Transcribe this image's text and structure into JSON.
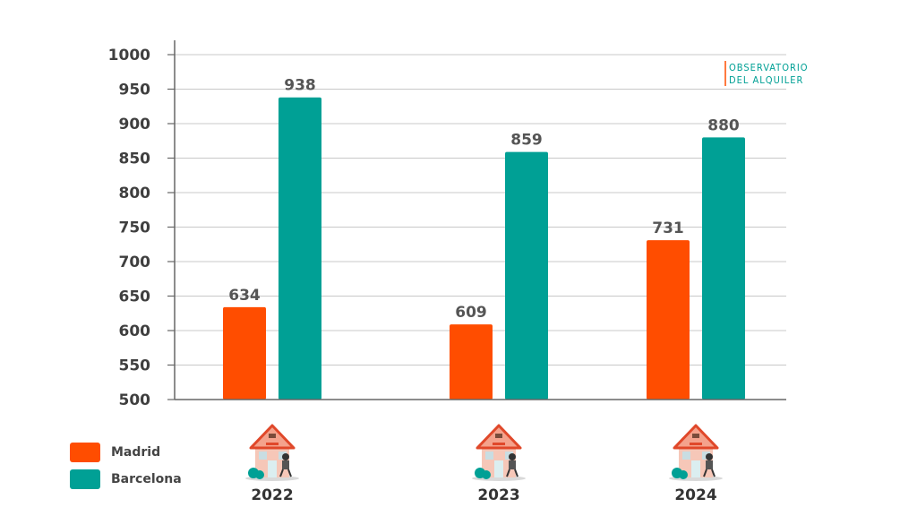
{
  "chart_data": {
    "type": "bar",
    "categories": [
      "2022",
      "2023",
      "2024"
    ],
    "series": [
      {
        "name": "Madrid",
        "values": [
          634,
          609,
          731
        ]
      },
      {
        "name": "Barcelona",
        "values": [
          938,
          859,
          880
        ]
      }
    ],
    "title": "",
    "xlabel": "",
    "ylabel": "",
    "ylim": [
      500,
      1000
    ],
    "yticks": [
      500,
      550,
      600,
      650,
      700,
      750,
      800,
      850,
      900,
      950,
      1000
    ],
    "grid": true,
    "legend_position": "bottom-left"
  },
  "colors": {
    "madrid": "#ff4d00",
    "barcelona": "#00a095"
  },
  "watermark": {
    "line1": "OBSERVATORIO",
    "line2": "DEL ALQUILER"
  },
  "icons": {
    "category_icon": "house-with-burglar-icon"
  }
}
